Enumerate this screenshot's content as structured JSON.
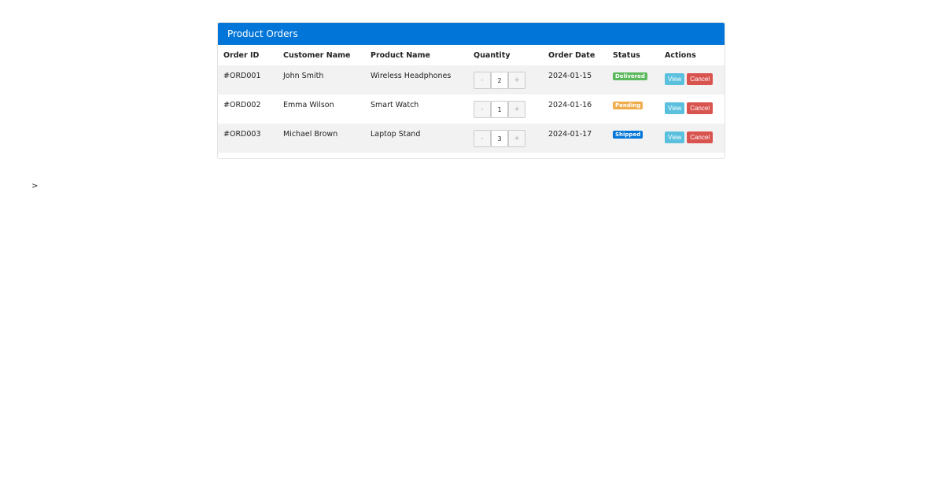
{
  "header": {
    "title": "Product Orders"
  },
  "table": {
    "columns": [
      "Order ID",
      "Customer Name",
      "Product Name",
      "Quantity",
      "Order Date",
      "Status",
      "Actions"
    ],
    "rows": [
      {
        "order_id": "#ORD001",
        "customer": "John Smith",
        "product": "Wireless Headphones",
        "quantity": 2,
        "order_date": "2024-01-15",
        "status": "Delivered",
        "status_color": "#5cb85c",
        "actions": [
          "View",
          "Cancel"
        ]
      },
      {
        "order_id": "#ORD002",
        "customer": "Emma Wilson",
        "product": "Smart Watch",
        "quantity": 1,
        "order_date": "2024-01-16",
        "status": "Pending",
        "status_color": "#f0ad4e",
        "actions": [
          "View",
          "Cancel"
        ]
      },
      {
        "order_id": "#ORD003",
        "customer": "Michael Brown",
        "product": "Laptop Stand",
        "quantity": 3,
        "order_date": "2024-01-17",
        "status": "Shipped",
        "status_color": "#0275d8",
        "actions": [
          "View",
          "Cancel"
        ]
      }
    ]
  },
  "quantity_controls": {
    "decrement": "-",
    "increment": "+"
  },
  "footer_text": ">"
}
